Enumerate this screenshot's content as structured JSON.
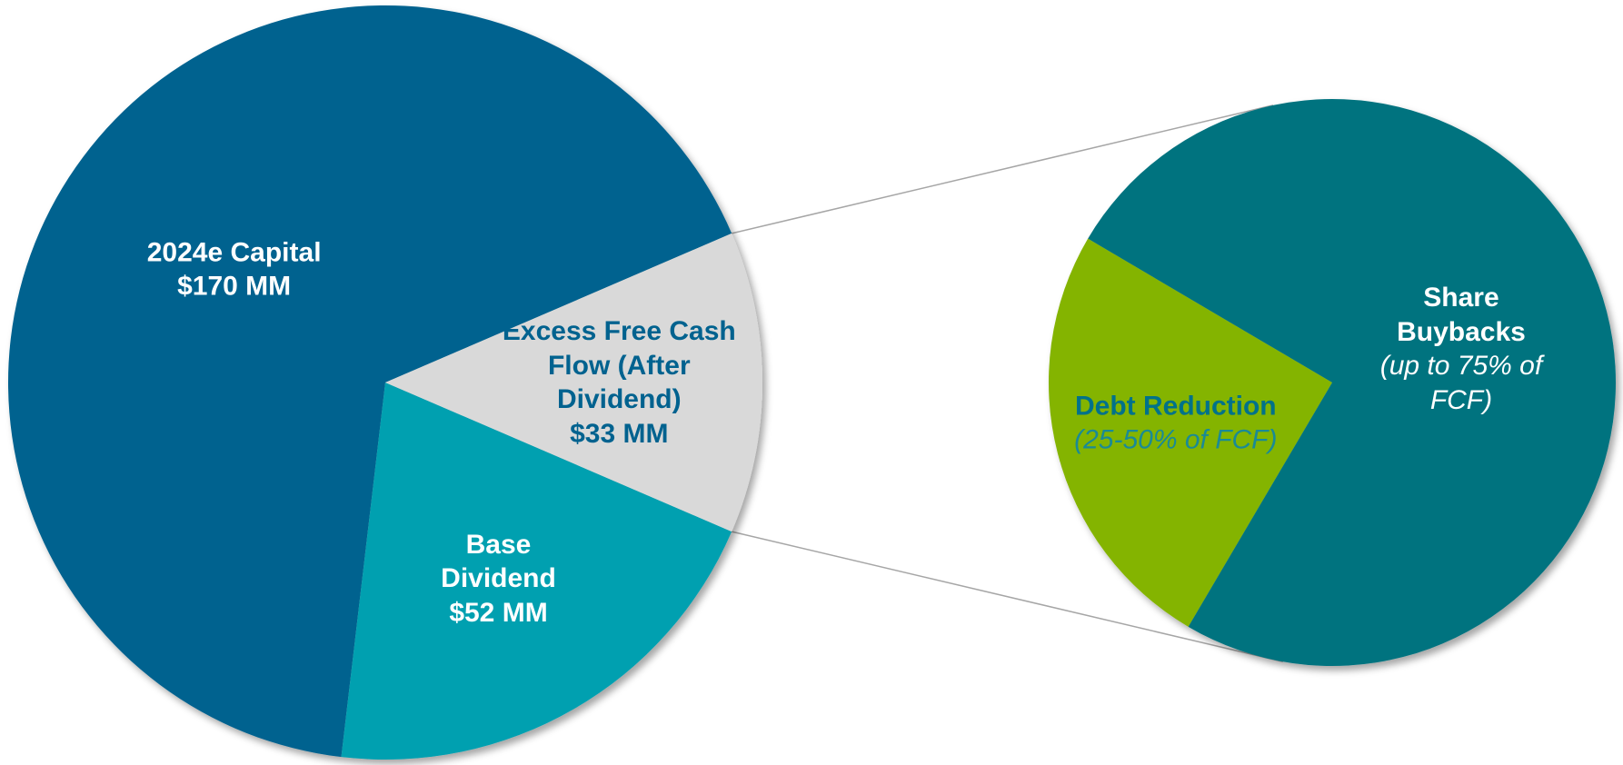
{
  "chart_data": [
    {
      "type": "pie",
      "categories": [
        "2024e Capital",
        "Base Dividend",
        "Excess Free Cash Flow (After Dividend)"
      ],
      "values": [
        170,
        52,
        33
      ],
      "value_labels": [
        "$170 MM",
        "$52 MM",
        "$33 MM"
      ],
      "colors": [
        "#00628f",
        "#00a0b0",
        "#d9d9d9"
      ]
    },
    {
      "type": "pie",
      "categories": [
        "Debt Reduction",
        "Share Buybacks"
      ],
      "values": [
        25,
        75
      ],
      "value_labels": [
        "(25-50% of FCF)",
        "(up to 75% of FCF)"
      ],
      "colors": [
        "#84b400",
        "#00737f"
      ]
    }
  ]
}
